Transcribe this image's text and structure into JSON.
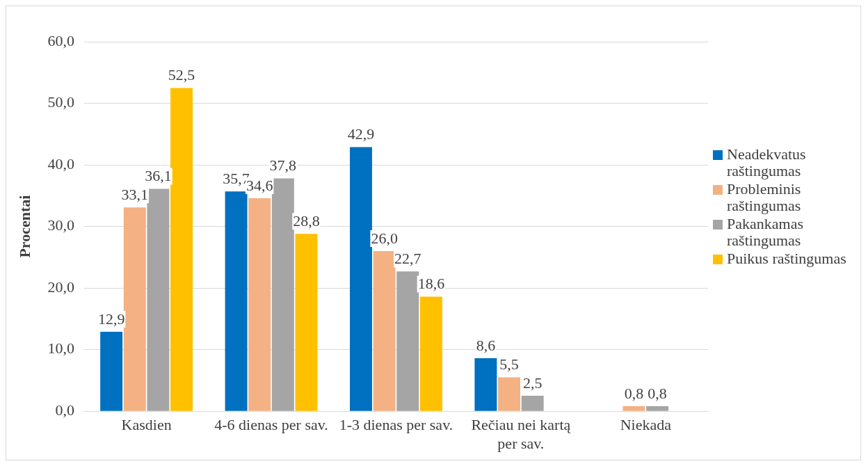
{
  "chart_data": {
    "type": "bar",
    "ylabel": "Procentai",
    "categories": [
      "Kasdien",
      "4-6 dienas per sav.",
      "1-3 dienas per sav.",
      "Rečiau nei kartą per sav.",
      "Niekada"
    ],
    "series": [
      {
        "name": "Neadekvatus raštingumas",
        "color": "#0070c0",
        "values": [
          12.9,
          35.7,
          42.9,
          8.6,
          null
        ],
        "value_labels": [
          "12,9",
          "35,7",
          "42,9",
          "8,6",
          null
        ]
      },
      {
        "name": "Probleminis raštingumas",
        "color": "#f4b183",
        "values": [
          33.1,
          34.6,
          26.0,
          5.5,
          0.8
        ],
        "value_labels": [
          "33,1",
          "34,6",
          "26,0",
          "5,5",
          "0,8"
        ]
      },
      {
        "name": "Pakankamas raštingumas",
        "color": "#a5a5a5",
        "values": [
          36.1,
          37.8,
          22.7,
          2.5,
          0.8
        ],
        "value_labels": [
          "36,1",
          "37,8",
          "22,7",
          "2,5",
          "0,8"
        ]
      },
      {
        "name": "Puikus raštingumas",
        "color": "#ffc000",
        "values": [
          52.5,
          28.8,
          18.6,
          null,
          null
        ],
        "value_labels": [
          "52,5",
          "28,8",
          "18,6",
          null,
          null
        ]
      }
    ],
    "ylim": [
      0,
      60
    ],
    "yticks": [
      {
        "value": 0,
        "label": "0,0"
      },
      {
        "value": 10,
        "label": "10,0"
      },
      {
        "value": 20,
        "label": "20,0"
      },
      {
        "value": 30,
        "label": "30,0"
      },
      {
        "value": 40,
        "label": "40,0"
      },
      {
        "value": 50,
        "label": "50,0"
      },
      {
        "value": 60,
        "label": "60,0"
      }
    ],
    "grid": "y",
    "legend": "right"
  }
}
